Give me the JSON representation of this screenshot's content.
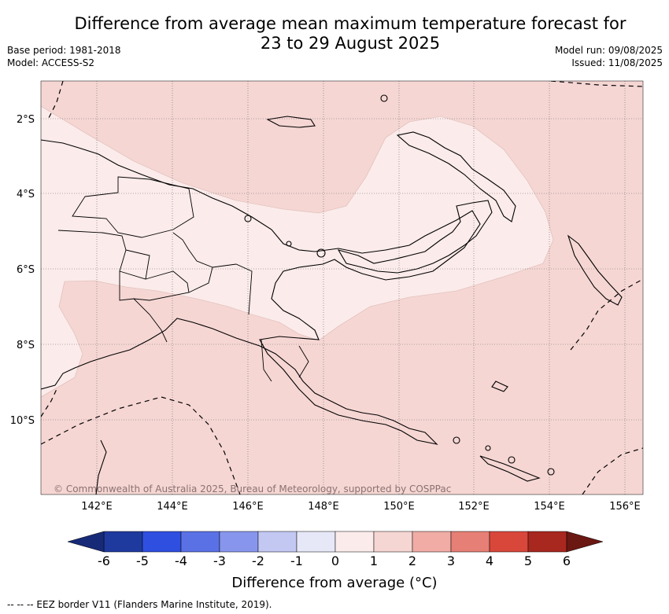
{
  "header": {
    "title_line1": "Difference from average mean maximum temperature forecast for",
    "title_line2": "23 to 29 August 2025",
    "base_period": "Base period: 1981-2018",
    "model": "Model: ACCESS-S2",
    "model_run": "Model run: 09/08/2025",
    "issued": "Issued: 11/08/2025"
  },
  "map": {
    "region": "Papua New Guinea",
    "lat_labels": [
      "2°S",
      "4°S",
      "6°S",
      "8°S",
      "10°S"
    ],
    "lon_labels": [
      "142°E",
      "144°E",
      "146°E",
      "148°E",
      "150°E",
      "152°E",
      "154°E",
      "156°E"
    ],
    "copyright": "© Commonwealth of Australia 2025, Bureau of Meteorology, supported by COSPPac",
    "colors": {
      "anomaly_1_to_2": "#f5d6d3",
      "anomaly_0_to_1": "#fbebea",
      "coastline": "#000000",
      "gridline": "#666666"
    }
  },
  "colorbar": {
    "ticks": [
      "-6",
      "-5",
      "-4",
      "-3",
      "-2",
      "-1",
      "0",
      "1",
      "2",
      "3",
      "4",
      "5",
      "6"
    ],
    "colors": [
      "#1f3a9e",
      "#2f4fe0",
      "#5a71e6",
      "#8796ec",
      "#c3c8f3",
      "#e6e8f8",
      "#fbebea",
      "#f5d6d3",
      "#f0aca5",
      "#e67f75",
      "#d9473b",
      "#a8271f"
    ],
    "under_color": "#172a78",
    "over_color": "#6b1712",
    "label": "Difference from average (°C)"
  },
  "footer": {
    "legend_text": "--  --  -- EEZ border V11 (Flanders Marine Institute, 2019)."
  }
}
